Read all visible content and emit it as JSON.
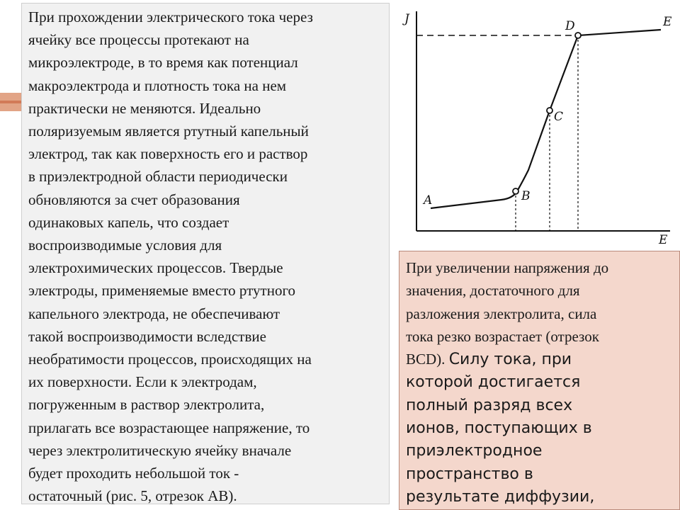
{
  "left_panel": {
    "text": "При прохождении электрического тока через\nячейку все процессы протекают на\nмикроэлектроде, в то время как потенциал\nмакроэлектрода и плотность тока на нем\nпрактически не меняются. Идеально\nполяризуемым является ртутный капельный\nэлектрод, так как поверхность его и раствор\nв приэлектродной области периодически\nобновляются за счет образования\nодинаковых капель, что создает\nвоспроизводимые условия для\nэлектрохимических процессов. Твердые\nэлектроды, применяемые вместо ртутного\nкапельного электрода, не обеспечивают\nтакой воспроизводимости вследствие\nнеобратимости процессов, происходящих на\nих поверхности. Если к электродам,\nпогруженным в раствор электролита,\nприлагать все возрастающее напряжение, то\nчерез электролитическую ячейку вначале\nбудет проходить небольшой ток -\nостаточный (рис. 5, отрезок АВ)."
  },
  "graph": {
    "y_axis_label": "J",
    "x_axis_label": "E",
    "points": [
      {
        "label": "A"
      },
      {
        "label": "B"
      },
      {
        "label": "C"
      },
      {
        "label": "D"
      },
      {
        "label": "E"
      }
    ]
  },
  "right_panel": {
    "text_serif": "При увеличении напряжения до\nзначения, достаточного для\nразложения электролита, сила\nтока резко возрастает (отрезок\nBCD). ",
    "text_sans": "Силу тока, при\nкоторой достигается\nполный разряд всех\nионов, поступающих в\nприэлектродное\nпространство в\nрезультате диффузии,"
  }
}
